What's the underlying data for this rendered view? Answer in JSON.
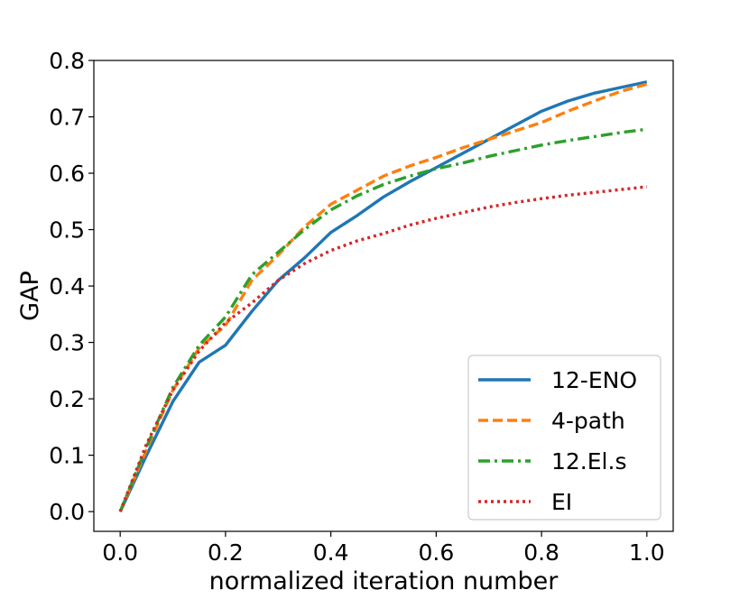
{
  "chart_data": {
    "type": "line",
    "title": "",
    "xlabel": "normalized iteration number",
    "ylabel": "GAP",
    "xlim": [
      -0.05,
      1.05
    ],
    "ylim": [
      -0.035,
      0.8
    ],
    "xticks": [
      0.0,
      0.2,
      0.4,
      0.6,
      0.8,
      1.0
    ],
    "xtick_labels": [
      "0.0",
      "0.2",
      "0.4",
      "0.6",
      "0.8",
      "1.0"
    ],
    "yticks": [
      0.0,
      0.1,
      0.2,
      0.3,
      0.4,
      0.5,
      0.6,
      0.7,
      0.8
    ],
    "ytick_labels": [
      "0.0",
      "0.1",
      "0.2",
      "0.3",
      "0.4",
      "0.5",
      "0.6",
      "0.7",
      "0.8"
    ],
    "grid": false,
    "legend_position": "bottom-right",
    "series": [
      {
        "name": "12-ENO",
        "color": "#1f77b4",
        "style": "solid",
        "x": [
          0.0,
          0.05,
          0.1,
          0.15,
          0.2,
          0.25,
          0.3,
          0.35,
          0.4,
          0.45,
          0.5,
          0.55,
          0.6,
          0.65,
          0.7,
          0.75,
          0.8,
          0.85,
          0.9,
          0.95,
          1.0
        ],
        "y": [
          0.0,
          0.1,
          0.195,
          0.265,
          0.295,
          0.355,
          0.41,
          0.45,
          0.495,
          0.525,
          0.558,
          0.585,
          0.61,
          0.635,
          0.66,
          0.685,
          0.71,
          0.728,
          0.742,
          0.752,
          0.762
        ]
      },
      {
        "name": "4-path",
        "color": "#ff7f0e",
        "style": "dashed",
        "x": [
          0.0,
          0.05,
          0.1,
          0.15,
          0.2,
          0.25,
          0.3,
          0.35,
          0.4,
          0.45,
          0.5,
          0.55,
          0.6,
          0.65,
          0.7,
          0.75,
          0.8,
          0.85,
          0.9,
          0.95,
          1.0
        ],
        "y": [
          0.0,
          0.11,
          0.215,
          0.29,
          0.33,
          0.41,
          0.455,
          0.505,
          0.545,
          0.57,
          0.595,
          0.613,
          0.628,
          0.645,
          0.66,
          0.675,
          0.69,
          0.71,
          0.728,
          0.745,
          0.758
        ]
      },
      {
        "name": "12.El.s",
        "color": "#2ca02c",
        "style": "dashdot",
        "x": [
          0.0,
          0.05,
          0.1,
          0.15,
          0.2,
          0.25,
          0.3,
          0.35,
          0.4,
          0.45,
          0.5,
          0.55,
          0.6,
          0.65,
          0.7,
          0.75,
          0.8,
          0.85,
          0.9,
          0.95,
          1.0
        ],
        "y": [
          0.0,
          0.115,
          0.22,
          0.295,
          0.345,
          0.42,
          0.46,
          0.5,
          0.535,
          0.56,
          0.58,
          0.595,
          0.608,
          0.618,
          0.63,
          0.64,
          0.65,
          0.658,
          0.665,
          0.672,
          0.678
        ]
      },
      {
        "name": "EI",
        "color": "#d62728",
        "style": "dotted",
        "x": [
          0.0,
          0.05,
          0.1,
          0.15,
          0.2,
          0.25,
          0.3,
          0.35,
          0.4,
          0.45,
          0.5,
          0.55,
          0.6,
          0.65,
          0.7,
          0.75,
          0.8,
          0.85,
          0.9,
          0.95,
          1.0
        ],
        "y": [
          0.0,
          0.12,
          0.215,
          0.285,
          0.335,
          0.37,
          0.41,
          0.44,
          0.463,
          0.48,
          0.493,
          0.508,
          0.52,
          0.53,
          0.54,
          0.548,
          0.555,
          0.561,
          0.566,
          0.571,
          0.576
        ]
      }
    ]
  }
}
